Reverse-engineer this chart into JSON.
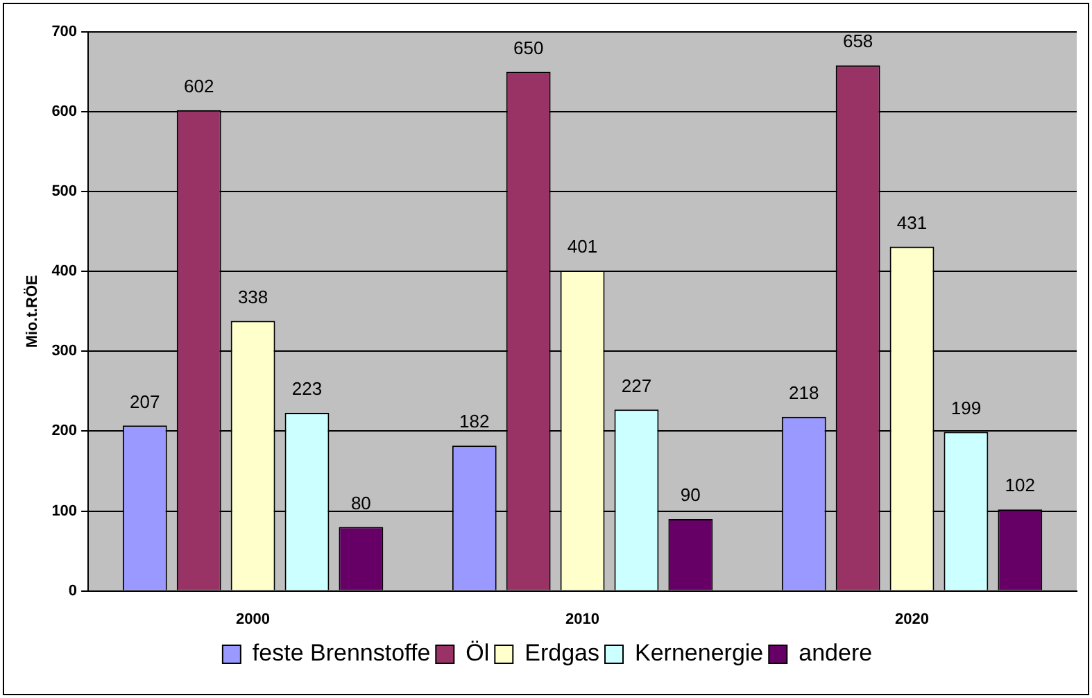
{
  "chart_data": {
    "type": "bar",
    "ylabel": "Mio.t.RÖE",
    "categories": [
      "2000",
      "2010",
      "2020"
    ],
    "series": [
      {
        "name": "feste Brennstoffe",
        "color": "#9999ff",
        "values": [
          207,
          182,
          218
        ]
      },
      {
        "name": "Öl",
        "color": "#993366",
        "values": [
          602,
          650,
          658
        ]
      },
      {
        "name": "Erdgas",
        "color": "#ffffcc",
        "values": [
          338,
          401,
          431
        ]
      },
      {
        "name": "Kernenergie",
        "color": "#ccffff",
        "values": [
          223,
          227,
          199
        ]
      },
      {
        "name": "andere",
        "color": "#660066",
        "values": [
          80,
          90,
          102
        ]
      }
    ],
    "ylim": [
      0,
      700
    ],
    "yticks": [
      0,
      100,
      200,
      300,
      400,
      500,
      600,
      700
    ],
    "grid": "y",
    "legend": "bottom",
    "data_labels": true
  }
}
